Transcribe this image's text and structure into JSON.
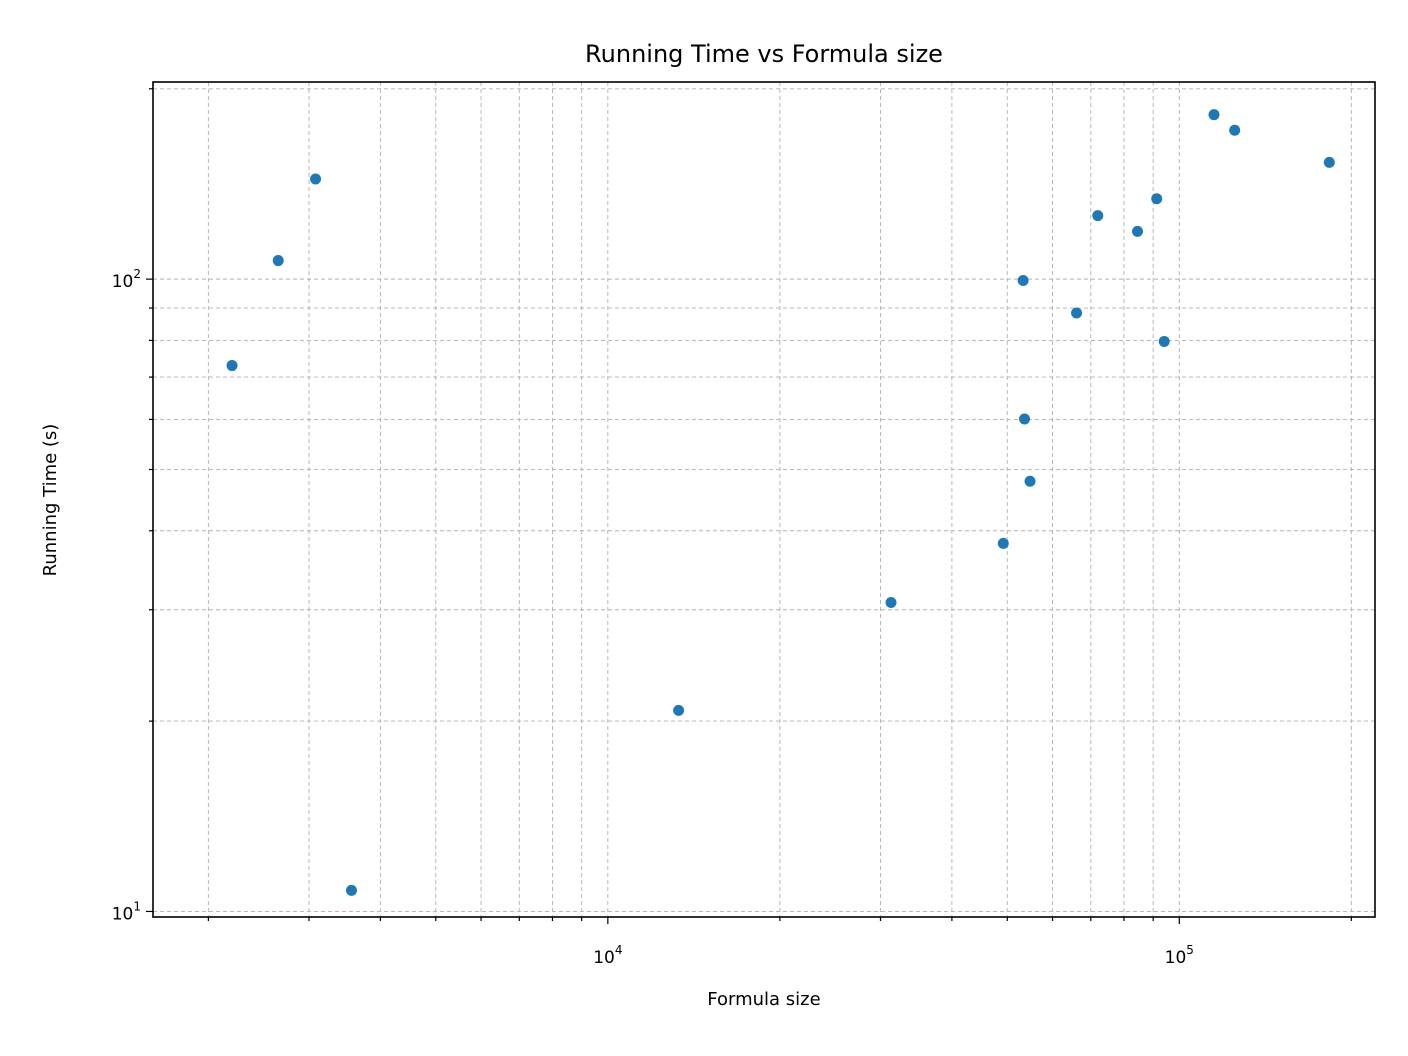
{
  "chart_data": {
    "type": "scatter",
    "title": "Running Time vs Formula size",
    "xlabel": "Formula size",
    "ylabel": "Running Time (s)",
    "x_scale": "log",
    "y_scale": "log",
    "xlim": [
      1600,
      220000
    ],
    "ylim": [
      9.8,
      205
    ],
    "x_major_ticks": [
      {
        "value": 10000,
        "base": "10",
        "exp": "4"
      },
      {
        "value": 100000,
        "base": "10",
        "exp": "5"
      }
    ],
    "y_major_ticks": [
      {
        "value": 10,
        "base": "10",
        "exp": "1"
      },
      {
        "value": 100,
        "base": "10",
        "exp": "2"
      }
    ],
    "x_minor_ticks": [
      2000,
      3000,
      4000,
      5000,
      6000,
      7000,
      8000,
      9000,
      20000,
      30000,
      40000,
      50000,
      60000,
      70000,
      80000,
      90000,
      200000
    ],
    "y_minor_ticks": [
      20,
      30,
      40,
      50,
      60,
      70,
      80,
      90,
      200
    ],
    "grid": true,
    "marker_color": "#1f77b4",
    "points": [
      {
        "x": 2200,
        "y": 73
      },
      {
        "x": 2650,
        "y": 107
      },
      {
        "x": 3080,
        "y": 144
      },
      {
        "x": 3560,
        "y": 10.8
      },
      {
        "x": 13300,
        "y": 20.8
      },
      {
        "x": 31300,
        "y": 30.8
      },
      {
        "x": 49200,
        "y": 38.2
      },
      {
        "x": 53300,
        "y": 99.5
      },
      {
        "x": 53600,
        "y": 60.1
      },
      {
        "x": 54800,
        "y": 47.9
      },
      {
        "x": 66100,
        "y": 88.4
      },
      {
        "x": 72000,
        "y": 126
      },
      {
        "x": 84500,
        "y": 119
      },
      {
        "x": 91300,
        "y": 134
      },
      {
        "x": 94100,
        "y": 79.7
      },
      {
        "x": 115000,
        "y": 182
      },
      {
        "x": 125000,
        "y": 172
      },
      {
        "x": 183000,
        "y": 153
      }
    ]
  }
}
